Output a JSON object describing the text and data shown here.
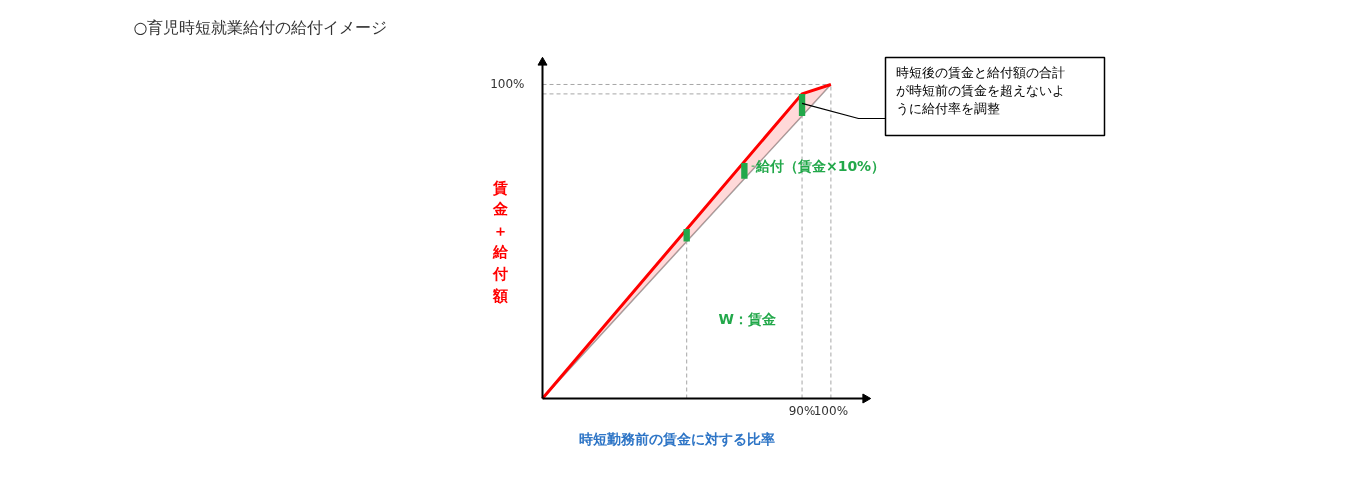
{
  "chart_data": {
    "type": "line",
    "title": "○育児時短就業給付の給付イメージ",
    "xlabel": "時短勤務前の賃金に対する比率",
    "ylabel": "賃金＋給付額",
    "x": [
      0,
      90,
      100
    ],
    "series": [
      {
        "color": "#a6a6a6",
        "values": [
          0,
          90,
          100
        ]
      },
      {
        "color": "#ff0000",
        "values": [
          0,
          97,
          100
        ],
        "lower": [
          0,
          90,
          100
        ],
        "upper": [
          0,
          97,
          100
        ]
      },
      {
        "type": "bar",
        "color": "#22a84a",
        "x": [
          50,
          70,
          90
        ],
        "base": [
          50,
          70,
          90
        ],
        "values": [
          4,
          5,
          7
        ]
      }
    ],
    "xlim": [
      0,
      112
    ],
    "ylim": [
      0,
      107
    ],
    "xticks": [
      {
        "value": 90,
        "label": "90%"
      },
      {
        "value": 100,
        "label": "100%"
      }
    ],
    "yticks": [
      {
        "value": 100,
        "label": "100%"
      }
    ],
    "ref_lines": [
      {
        "axis": "x",
        "value": 50,
        "color": "#a6a6a6",
        "line_style": "dashed"
      },
      {
        "axis": "x",
        "value": 90,
        "color": "#a6a6a6",
        "line_style": "dashed"
      },
      {
        "axis": "x",
        "value": 100,
        "color": "#a6a6a6",
        "line_style": "dashed"
      },
      {
        "axis": "y",
        "value": 97,
        "color": "#a6a6a6",
        "line_style": "dashed"
      },
      {
        "axis": "y",
        "value": 100,
        "color": "#a6a6a6",
        "line_style": "dashed"
      }
    ],
    "annotations": [
      "W：賃金",
      {
        "text": "給付（賃金×10%）",
        "x": 70,
        "y": 74
      },
      {
        "text": "時短後の賃金と給付額の合計が時短前の賃金を超えないように給付率を調整",
        "x": 90,
        "y": 94
      }
    ],
    "grid": false,
    "marker": "none",
    "line_style": "solid"
  }
}
